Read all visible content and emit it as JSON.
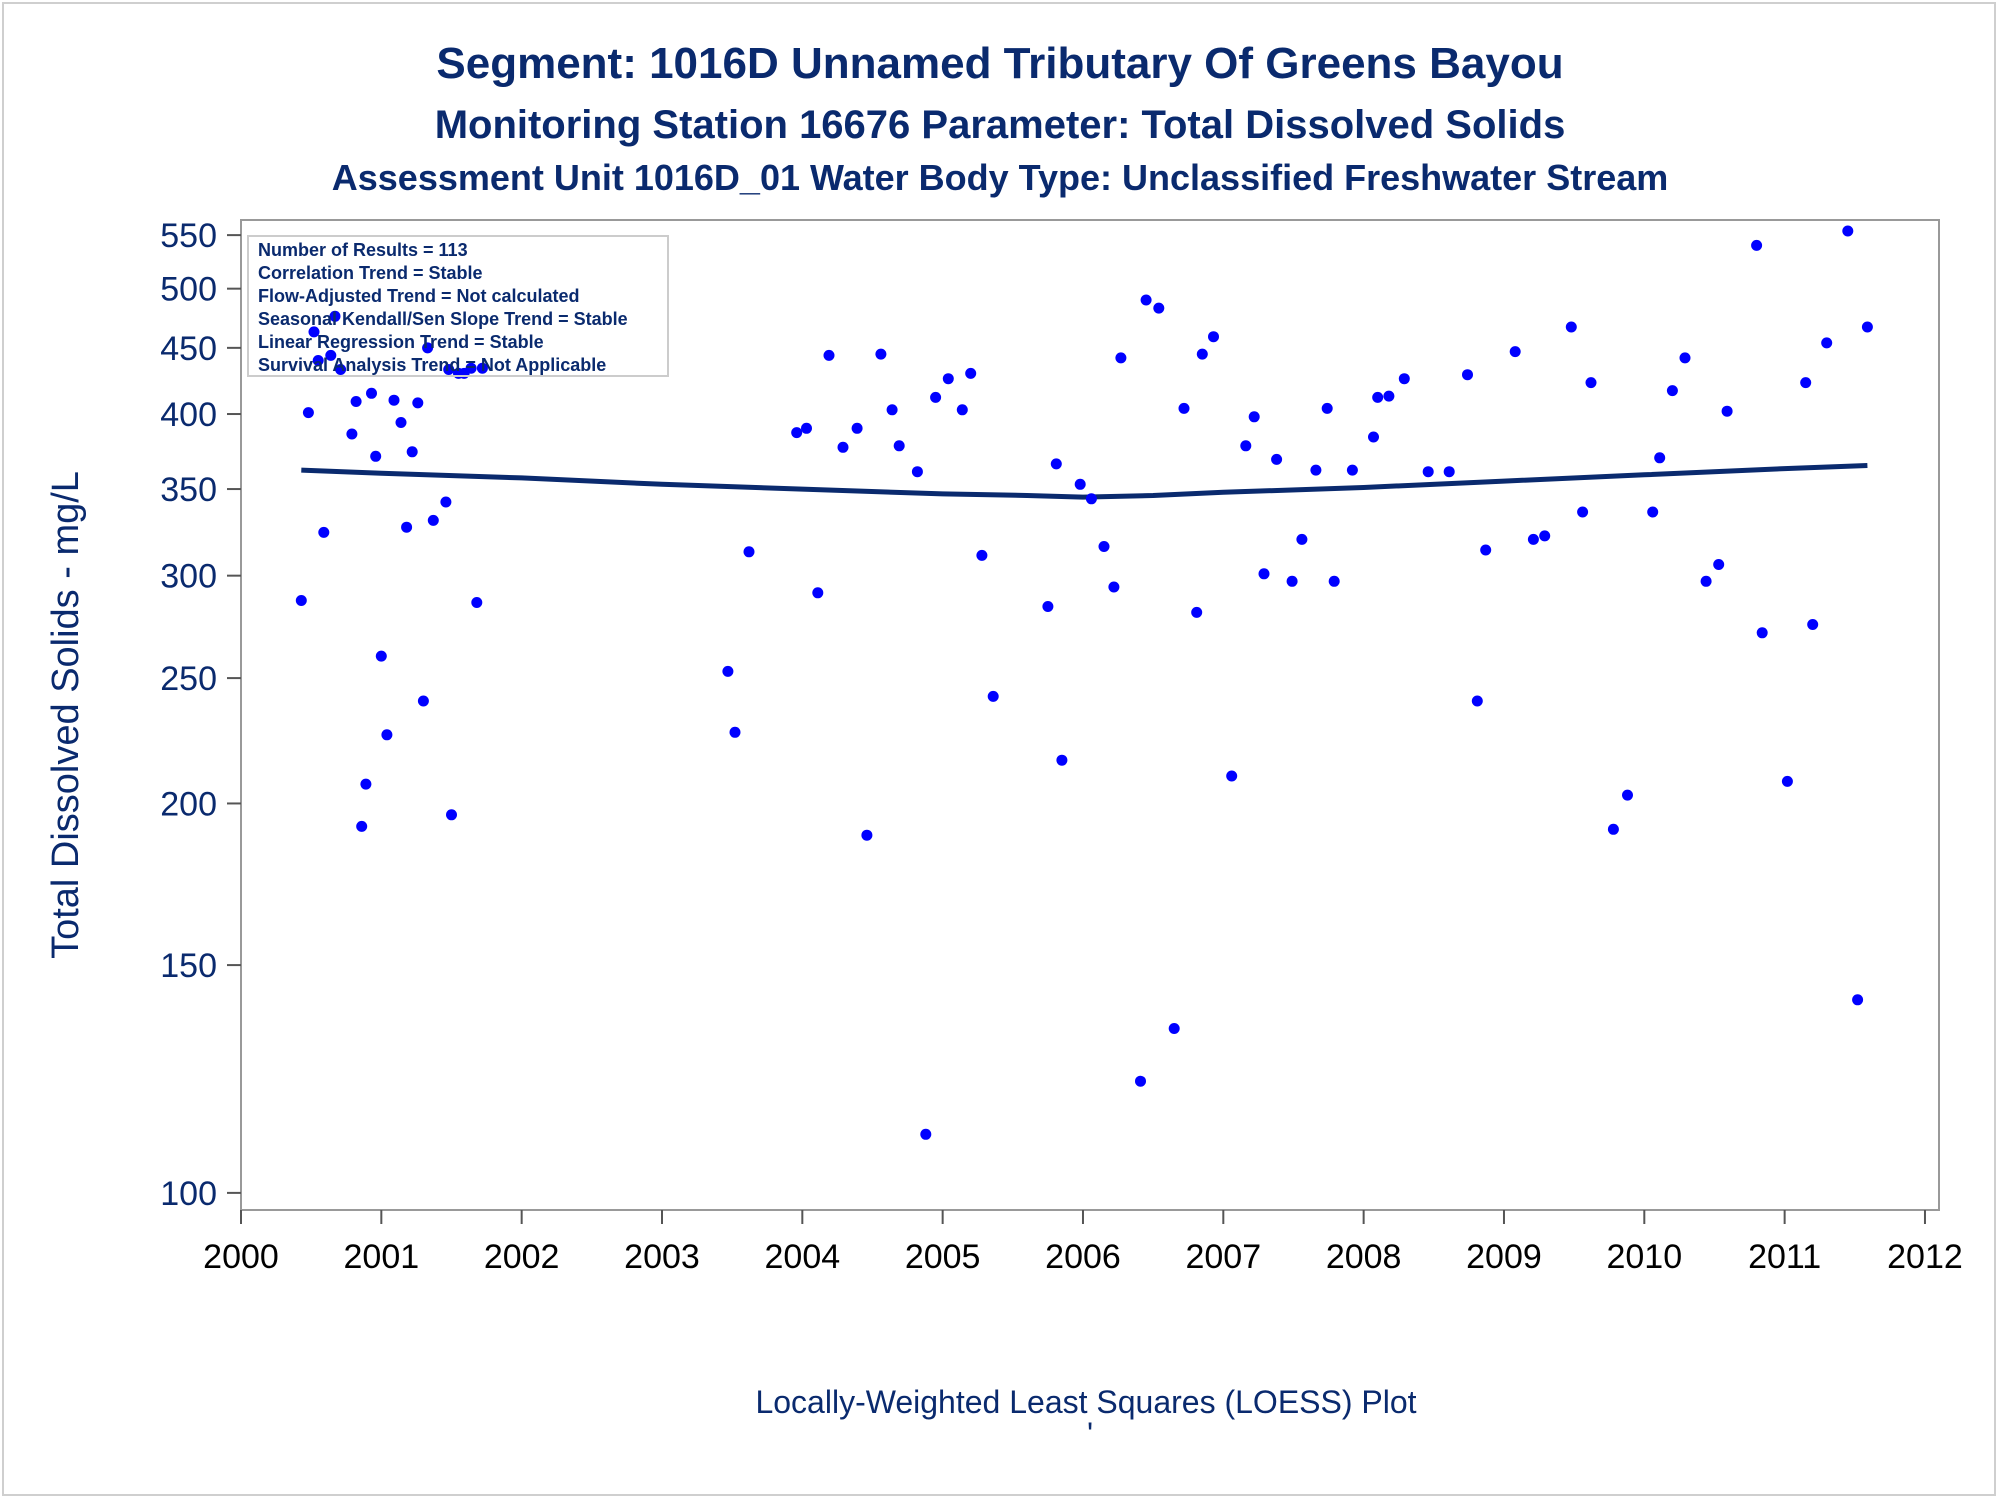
{
  "titles": {
    "line1": "Segment: 1016D  Unnamed Tributary Of Greens Bayou",
    "line2": "Monitoring Station 16676 Parameter: Total Dissolved Solids",
    "line3": "Assessment Unit 1016D_01   Water Body Type: Unclassified Freshwater Stream"
  },
  "footer": {
    "label": "Locally-Weighted Least Squares (LOESS) Plot",
    "mark": "'"
  },
  "stats_box": [
    "Number of Results = 113",
    "Correlation Trend = Stable",
    "Flow-Adjusted Trend = Not calculated",
    "Seasonal Kendall/Sen Slope Trend = Stable",
    "Linear Regression Trend = Stable",
    "Survival Analysis Trend = Not Applicable"
  ],
  "colors": {
    "points": "#0000ff",
    "loess_line": "#0a2a6e",
    "text": "#0a2a6e",
    "frame": "#999999"
  },
  "chart_data": {
    "type": "scatter",
    "title": "Segment: 1016D  Unnamed Tributary Of Greens Bayou",
    "ylabel": "Total Dissolved Solids - mg/L",
    "xlabel": "",
    "y_scale": "log",
    "ylim": [
      97,
      565
    ],
    "xlim": [
      2000,
      2012.1
    ],
    "y_ticks": [
      100,
      150,
      200,
      250,
      300,
      350,
      400,
      450,
      500,
      550
    ],
    "x_ticks": [
      2000,
      2001,
      2002,
      2003,
      2004,
      2005,
      2006,
      2007,
      2008,
      2009,
      2010,
      2011,
      2012
    ],
    "points": [
      [
        2000.43,
        287
      ],
      [
        2000.48,
        401
      ],
      [
        2000.52,
        463
      ],
      [
        2000.55,
        440
      ],
      [
        2000.59,
        324
      ],
      [
        2000.64,
        444
      ],
      [
        2000.67,
        476
      ],
      [
        2000.71,
        433
      ],
      [
        2000.79,
        386
      ],
      [
        2000.82,
        409
      ],
      [
        2000.86,
        192
      ],
      [
        2000.89,
        207
      ],
      [
        2000.93,
        415
      ],
      [
        2000.96,
        371
      ],
      [
        2001.0,
        260
      ],
      [
        2001.04,
        226
      ],
      [
        2001.09,
        410
      ],
      [
        2001.14,
        394
      ],
      [
        2001.18,
        327
      ],
      [
        2001.22,
        374
      ],
      [
        2001.26,
        408
      ],
      [
        2001.3,
        240
      ],
      [
        2001.33,
        450
      ],
      [
        2001.37,
        331
      ],
      [
        2001.46,
        342
      ],
      [
        2001.5,
        196
      ],
      [
        2001.48,
        433
      ],
      [
        2001.55,
        430
      ],
      [
        2001.59,
        430
      ],
      [
        2001.64,
        434
      ],
      [
        2001.68,
        286
      ],
      [
        2001.72,
        434
      ],
      [
        2003.47,
        253
      ],
      [
        2003.52,
        227
      ],
      [
        2003.62,
        313
      ],
      [
        2003.96,
        387
      ],
      [
        2004.03,
        390
      ],
      [
        2004.11,
        291
      ],
      [
        2004.19,
        444
      ],
      [
        2004.29,
        377
      ],
      [
        2004.39,
        390
      ],
      [
        2004.46,
        189
      ],
      [
        2004.56,
        445
      ],
      [
        2004.64,
        403
      ],
      [
        2004.69,
        378
      ],
      [
        2004.82,
        361
      ],
      [
        2004.88,
        111
      ],
      [
        2004.95,
        412
      ],
      [
        2005.04,
        426
      ],
      [
        2005.14,
        403
      ],
      [
        2005.2,
        430
      ],
      [
        2005.28,
        311
      ],
      [
        2005.36,
        242
      ],
      [
        2005.75,
        284
      ],
      [
        2005.81,
        366
      ],
      [
        2005.85,
        216
      ],
      [
        2005.98,
        353
      ],
      [
        2006.06,
        344
      ],
      [
        2006.15,
        316
      ],
      [
        2006.22,
        294
      ],
      [
        2006.27,
        442
      ],
      [
        2006.41,
        122
      ],
      [
        2006.45,
        490
      ],
      [
        2006.54,
        483
      ],
      [
        2006.65,
        134
      ],
      [
        2006.72,
        404
      ],
      [
        2006.81,
        281
      ],
      [
        2006.85,
        445
      ],
      [
        2006.93,
        459
      ],
      [
        2007.06,
        210
      ],
      [
        2007.16,
        378
      ],
      [
        2007.22,
        398
      ],
      [
        2007.29,
        301
      ],
      [
        2007.38,
        369
      ],
      [
        2007.49,
        297
      ],
      [
        2007.56,
        320
      ],
      [
        2007.66,
        362
      ],
      [
        2007.74,
        404
      ],
      [
        2007.79,
        297
      ],
      [
        2007.92,
        362
      ],
      [
        2008.07,
        384
      ],
      [
        2008.1,
        412
      ],
      [
        2008.18,
        413
      ],
      [
        2008.29,
        426
      ],
      [
        2008.46,
        361
      ],
      [
        2008.61,
        361
      ],
      [
        2008.74,
        429
      ],
      [
        2008.81,
        240
      ],
      [
        2008.87,
        314
      ],
      [
        2009.08,
        447
      ],
      [
        2009.21,
        320
      ],
      [
        2009.29,
        322
      ],
      [
        2009.48,
        467
      ],
      [
        2009.56,
        336
      ],
      [
        2009.62,
        423
      ],
      [
        2009.78,
        191
      ],
      [
        2009.88,
        203
      ],
      [
        2010.06,
        336
      ],
      [
        2010.11,
        370
      ],
      [
        2010.2,
        417
      ],
      [
        2010.29,
        442
      ],
      [
        2010.44,
        297
      ],
      [
        2010.53,
        306
      ],
      [
        2010.59,
        402
      ],
      [
        2010.8,
        540
      ],
      [
        2010.84,
        271
      ],
      [
        2011.02,
        208
      ],
      [
        2011.15,
        423
      ],
      [
        2011.2,
        275
      ],
      [
        2011.3,
        454
      ],
      [
        2011.45,
        554
      ],
      [
        2011.52,
        141
      ],
      [
        2011.59,
        467
      ]
    ],
    "loess_line": [
      [
        2000.43,
        362
      ],
      [
        2001.0,
        360
      ],
      [
        2002.0,
        357
      ],
      [
        2003.0,
        353
      ],
      [
        2004.0,
        350
      ],
      [
        2005.0,
        347
      ],
      [
        2005.6,
        346
      ],
      [
        2006.0,
        345
      ],
      [
        2006.5,
        346
      ],
      [
        2007.0,
        348
      ],
      [
        2008.0,
        351
      ],
      [
        2009.0,
        355
      ],
      [
        2010.0,
        359
      ],
      [
        2011.0,
        363
      ],
      [
        2011.59,
        365
      ]
    ]
  }
}
